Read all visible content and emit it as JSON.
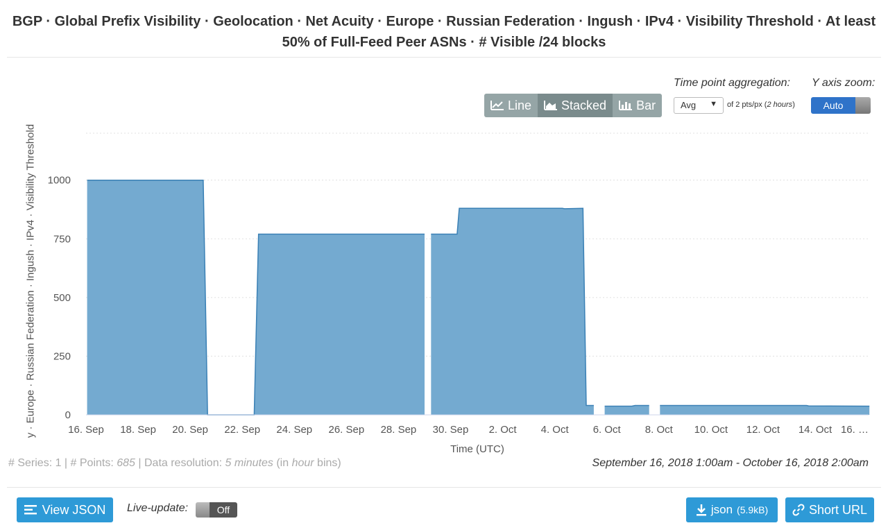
{
  "title": "BGP · Global Prefix Visibility · Geolocation · Net Acuity · Europe · Russian Federation · Ingush · IPv4 · Visibility Threshold · At least 50% of Full-Feed Peer ASNs · # Visible /24 blocks",
  "modes": {
    "line": "Line",
    "stacked": "Stacked",
    "bar": "Bar"
  },
  "aggregation": {
    "label": "Time point aggregation:",
    "value": "Avg",
    "note_prefix": "of 2 pts/px (",
    "note_italic": "2 hours",
    "note_suffix": ")"
  },
  "yzoom": {
    "label": "Y axis zoom:",
    "value": "Auto"
  },
  "colors": {
    "series": "#74aad0",
    "series_line": "#3a80b5",
    "accent": "#2e9ad7"
  },
  "chart_data": {
    "type": "area",
    "title": "",
    "xlabel": "Time (UTC)",
    "ylabel": "y · Europe · Russian Federation · Ingush · IPv4 · Visibility Threshold",
    "ylim": [
      0,
      1200
    ],
    "yticks": [
      0,
      250,
      500,
      750,
      1000
    ],
    "xticks": [
      "16. Sep",
      "18. Sep",
      "20. Sep",
      "22. Sep",
      "24. Sep",
      "26. Sep",
      "28. Sep",
      "30. Sep",
      "2. Oct",
      "4. Oct",
      "6. Oct",
      "8. Oct",
      "10. Oct",
      "12. Oct",
      "14. Oct",
      "16. …"
    ],
    "grid": true,
    "series": [
      {
        "segments": [
          [
            [
              "2018-09-16 01:00",
              1000
            ],
            [
              "2018-09-20 12:00",
              1000
            ],
            [
              "2018-09-20 16:00",
              0
            ],
            [
              "2018-09-22 11:00",
              0
            ],
            [
              "2018-09-22 15:00",
              770
            ],
            [
              "2018-09-29 00:00",
              770
            ]
          ],
          [
            [
              "2018-09-29 06:00",
              770
            ],
            [
              "2018-09-30 06:00",
              770
            ],
            [
              "2018-09-30 08:00",
              880
            ],
            [
              "2018-10-04 07:00",
              880
            ],
            [
              "2018-10-04 09:00",
              878
            ],
            [
              "2018-10-05 02:00",
              880
            ],
            [
              "2018-10-05 05:00",
              40
            ],
            [
              "2018-10-05 12:00",
              40
            ]
          ],
          [
            [
              "2018-10-05 22:00",
              37
            ],
            [
              "2018-10-06 23:00",
              37
            ],
            [
              "2018-10-07 02:00",
              40
            ],
            [
              "2018-10-07 15:00",
              40
            ]
          ],
          [
            [
              "2018-10-08 01:00",
              40
            ],
            [
              "2018-10-13 16:00",
              40
            ],
            [
              "2018-10-13 18:00",
              38
            ],
            [
              "2018-10-16 02:00",
              37
            ]
          ]
        ]
      }
    ]
  },
  "stats": {
    "series_label": "# Series: 1",
    "points_label": "# Points: ",
    "points": "685",
    "res_label": "Data resolution: ",
    "res_value": "5 minutes",
    "bin_prefix": "(in ",
    "bin_value": "hour",
    "bin_suffix": " bins)"
  },
  "range": "September 16, 2018 1:00am - October 16, 2018 2:00am",
  "footer": {
    "view_json": "View JSON",
    "live_label": "Live-update:",
    "live_value": "Off",
    "download": "json",
    "download_size": "(5.9kB)",
    "short_url": "Short URL"
  }
}
